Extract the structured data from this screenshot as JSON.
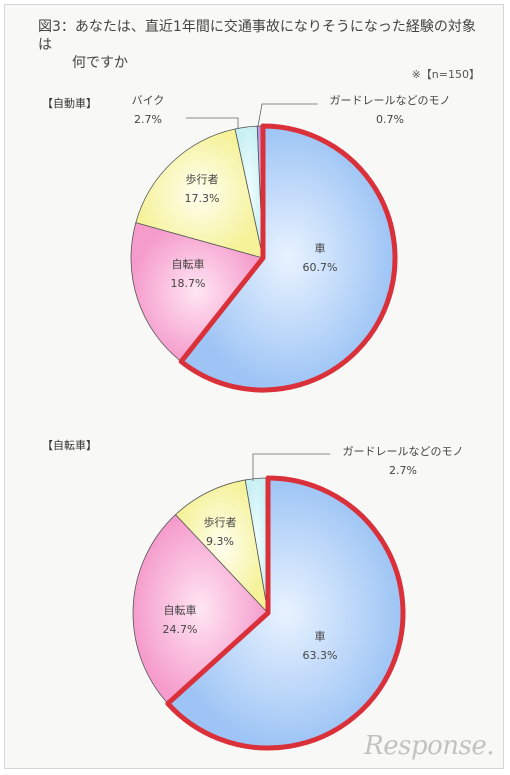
{
  "title_line1": "図3：あなたは、直近1年間に交通事故になりそうになった経験の対象は",
  "title_line2": "何ですか",
  "sample_note": "※【n=150】",
  "colors": {
    "car": "#9dc4f5",
    "bicycle": "#f59ccc",
    "pedestrian": "#f7f5a6",
    "bike": "#cff2f5",
    "guardrail": "#c4a3e6",
    "highlight": "#d9303a"
  },
  "chart_data": [
    {
      "type": "pie",
      "label": "【自動車】",
      "slices": [
        {
          "name": "車",
          "value": 60.7,
          "display": "60.7%"
        },
        {
          "name": "自転車",
          "value": 18.7,
          "display": "18.7%"
        },
        {
          "name": "歩行者",
          "value": 17.3,
          "display": "17.3%"
        },
        {
          "name": "バイク",
          "value": 2.7,
          "display": "2.7%"
        },
        {
          "name": "ガードレールなどのモノ",
          "value": 0.7,
          "display": "0.7%"
        }
      ]
    },
    {
      "type": "pie",
      "label": "【自転車】",
      "slices": [
        {
          "name": "車",
          "value": 63.3,
          "display": "63.3%"
        },
        {
          "name": "自転車",
          "value": 24.7,
          "display": "24.7%"
        },
        {
          "name": "歩行者",
          "value": 9.3,
          "display": "9.3%"
        },
        {
          "name": "ガードレールなどのモノ",
          "value": 2.7,
          "display": "2.7%"
        }
      ]
    }
  ],
  "watermark": "Response."
}
